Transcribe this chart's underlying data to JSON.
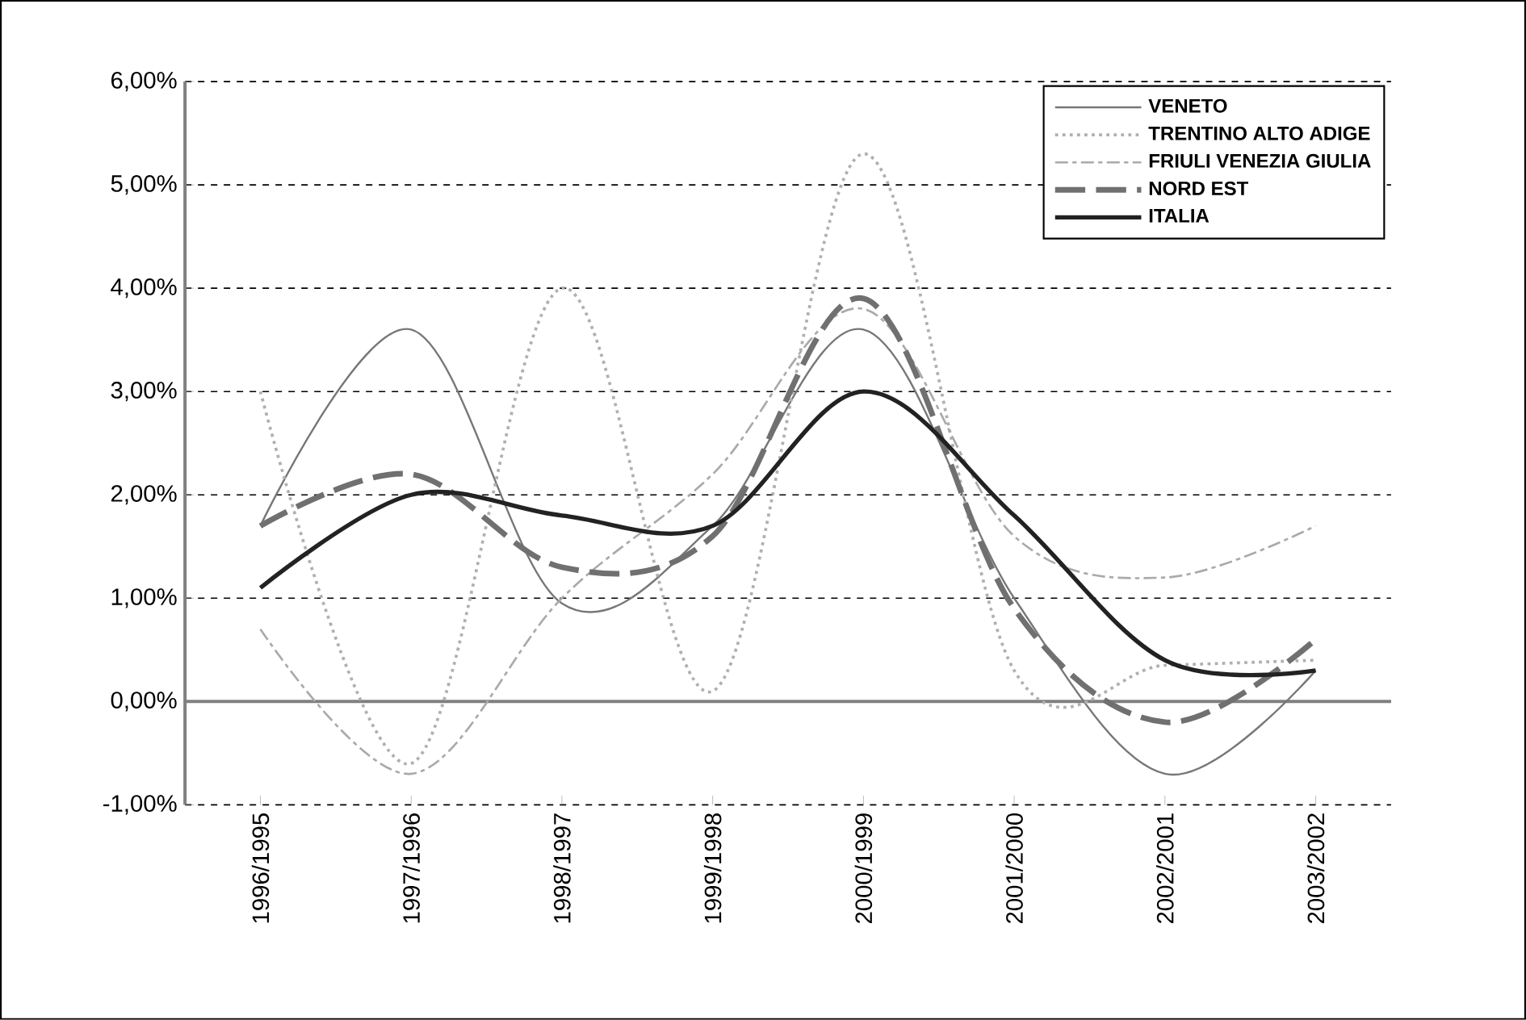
{
  "chart_data": {
    "type": "line",
    "categories": [
      "1996/1995",
      "1997/1996",
      "1998/1997",
      "1999/1998",
      "2000/1999",
      "2001/2000",
      "2002/2001",
      "2003/2002"
    ],
    "series": [
      {
        "name": "VENETO",
        "color": "#777777",
        "line_style": "solid",
        "values": [
          1.7,
          3.6,
          0.95,
          1.7,
          3.6,
          1.0,
          -0.7,
          0.3
        ]
      },
      {
        "name": "TRENTINO ALTO ADIGE",
        "color": "#b0b0b0",
        "line_style": "dotted",
        "values": [
          3.0,
          -0.6,
          4.0,
          0.1,
          5.3,
          0.3,
          0.35,
          0.4
        ]
      },
      {
        "name": "FRIULI VENEZIA GIULIA",
        "color": "#aaaaaa",
        "line_style": "dashed",
        "values": [
          0.7,
          -0.7,
          1.0,
          2.2,
          3.8,
          1.6,
          1.2,
          1.7
        ]
      },
      {
        "name": "NORD EST",
        "color": "#707070",
        "line_style": "dashed",
        "values": [
          1.7,
          2.2,
          1.3,
          1.6,
          3.9,
          0.9,
          -0.2,
          0.6
        ]
      },
      {
        "name": "ITALIA",
        "color": "#222222",
        "line_style": "solid",
        "values": [
          1.1,
          2.0,
          1.8,
          1.7,
          3.0,
          1.8,
          0.4,
          0.3
        ]
      }
    ],
    "ylim": [
      -1,
      6
    ],
    "yticks": [
      {
        "value": -1,
        "label": "-1,00%"
      },
      {
        "value": 0,
        "label": "0,00%"
      },
      {
        "value": 1,
        "label": "1,00%"
      },
      {
        "value": 2,
        "label": "2,00%"
      },
      {
        "value": 3,
        "label": "3,00%"
      },
      {
        "value": 4,
        "label": "4,00%"
      },
      {
        "value": 5,
        "label": "5,00%"
      },
      {
        "value": 6,
        "label": "6,00%"
      }
    ],
    "grid": "y",
    "legend": "top right",
    "marker": "none"
  }
}
